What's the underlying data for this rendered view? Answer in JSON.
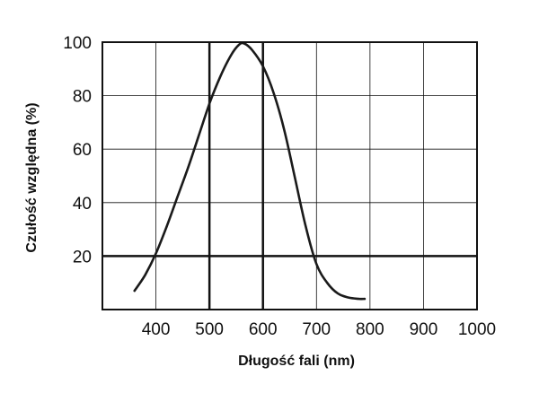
{
  "chart_data": {
    "type": "line",
    "xlabel": "Długość fali (nm)",
    "ylabel": "Czułość względna (%)",
    "xlim": [
      300,
      1000
    ],
    "ylim": [
      0,
      100
    ],
    "x_ticks": [
      400,
      500,
      600,
      700,
      800,
      900,
      1000
    ],
    "y_ticks": [
      20,
      40,
      60,
      80,
      100
    ],
    "grid": true,
    "legend": "none",
    "emphasized_gridlines": {
      "x": [
        500,
        600
      ],
      "y": [
        20
      ]
    },
    "series": [
      {
        "color": "#1a1a1a",
        "x": [
          360,
          380,
          400,
          420,
          440,
          460,
          480,
          500,
          520,
          540,
          555,
          565,
          580,
          600,
          620,
          640,
          660,
          680,
          700,
          720,
          740,
          760,
          780,
          790
        ],
        "y": [
          7,
          13,
          21,
          31,
          42,
          53,
          65,
          77,
          87,
          95,
          99,
          99.5,
          97,
          91,
          81,
          67,
          49,
          31,
          17,
          10,
          6,
          4.5,
          4,
          4
        ]
      }
    ]
  }
}
